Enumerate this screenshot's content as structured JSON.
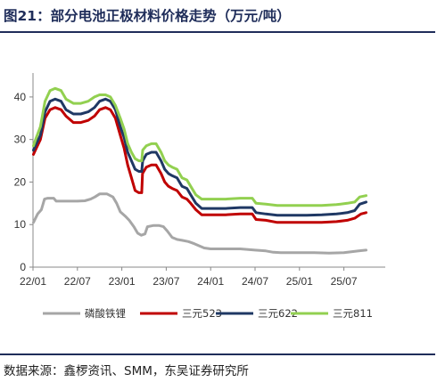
{
  "title": "图21：部分电池正极材料价格走势（万元/吨）",
  "source": "数据来源：鑫椤资讯、SMM，东吴证券研究所",
  "colors": {
    "lfp": "#a6a6a6",
    "ncm523": "#c00000",
    "ncm622": "#1f3864",
    "ncm811": "#92d050",
    "rule": "#1f2d5a"
  },
  "chart_data": {
    "type": "line",
    "x_start": "2022-01",
    "x_end": "2025-10",
    "xticks": [
      "22/01",
      "22/07",
      "23/01",
      "23/07",
      "24/01",
      "24/07",
      "25/01",
      "25/07"
    ],
    "yticks": [
      "0",
      "10",
      "20",
      "30",
      "40"
    ],
    "ylim": [
      0,
      45
    ],
    "grid": false,
    "legend_position": "bottom",
    "series": [
      {
        "name": "磷酸铁锂",
        "color_key": "lfp",
        "points": [
          [
            "2022-01-03",
            10.5
          ],
          [
            "2022-01-20",
            12.5
          ],
          [
            "2022-02-05",
            13.5
          ],
          [
            "2022-02-18",
            16
          ],
          [
            "2022-03-01",
            16.2
          ],
          [
            "2022-03-25",
            16.2
          ],
          [
            "2022-04-05",
            15.5
          ],
          [
            "2022-05-01",
            15.5
          ],
          [
            "2022-06-01",
            15.5
          ],
          [
            "2022-07-01",
            15.5
          ],
          [
            "2022-08-01",
            15.6
          ],
          [
            "2022-08-25",
            16
          ],
          [
            "2022-09-12",
            16.5
          ],
          [
            "2022-10-01",
            17.2
          ],
          [
            "2022-11-01",
            17.2
          ],
          [
            "2022-11-25",
            16.5
          ],
          [
            "2022-12-10",
            15
          ],
          [
            "2022-12-25",
            13
          ],
          [
            "2023-01-15",
            12
          ],
          [
            "2023-02-01",
            11
          ],
          [
            "2023-02-20",
            9.5
          ],
          [
            "2023-03-05",
            8
          ],
          [
            "2023-03-20",
            7.5
          ],
          [
            "2023-04-05",
            7.8
          ],
          [
            "2023-04-15",
            9.5
          ],
          [
            "2023-05-10",
            9.8
          ],
          [
            "2023-06-01",
            9.8
          ],
          [
            "2023-06-20",
            9.5
          ],
          [
            "2023-07-05",
            8.5
          ],
          [
            "2023-07-25",
            7
          ],
          [
            "2023-08-15",
            6.5
          ],
          [
            "2023-09-05",
            6.3
          ],
          [
            "2023-10-01",
            6
          ],
          [
            "2023-10-25",
            5.5
          ],
          [
            "2023-11-15",
            5
          ],
          [
            "2023-12-05",
            4.5
          ],
          [
            "2024-01-01",
            4.3
          ],
          [
            "2024-03-01",
            4.3
          ],
          [
            "2024-05-01",
            4.3
          ],
          [
            "2024-07-01",
            4.0
          ],
          [
            "2024-08-15",
            3.8
          ],
          [
            "2024-09-15",
            3.5
          ],
          [
            "2024-10-15",
            3.4
          ],
          [
            "2025-01-01",
            3.4
          ],
          [
            "2025-03-01",
            3.4
          ],
          [
            "2025-05-01",
            3.3
          ],
          [
            "2025-07-01",
            3.4
          ],
          [
            "2025-08-01",
            3.6
          ],
          [
            "2025-09-01",
            3.8
          ],
          [
            "2025-10-01",
            4.0
          ]
        ]
      },
      {
        "name": "三元523",
        "color_key": "ncm523",
        "points": [
          [
            "2022-01-03",
            26.5
          ],
          [
            "2022-01-15",
            28
          ],
          [
            "2022-02-01",
            30
          ],
          [
            "2022-02-20",
            35
          ],
          [
            "2022-03-10",
            37
          ],
          [
            "2022-04-01",
            37.5
          ],
          [
            "2022-04-25",
            37
          ],
          [
            "2022-05-15",
            35.5
          ],
          [
            "2022-06-15",
            34
          ],
          [
            "2022-07-15",
            34
          ],
          [
            "2022-08-15",
            34.5
          ],
          [
            "2022-09-10",
            35.5
          ],
          [
            "2022-10-01",
            37
          ],
          [
            "2022-10-25",
            37.5
          ],
          [
            "2022-11-15",
            37
          ],
          [
            "2022-12-05",
            35
          ],
          [
            "2022-12-25",
            31
          ],
          [
            "2023-01-10",
            28
          ],
          [
            "2023-01-25",
            24
          ],
          [
            "2023-02-10",
            21
          ],
          [
            "2023-02-25",
            18
          ],
          [
            "2023-03-10",
            17.5
          ],
          [
            "2023-03-22",
            17.5
          ],
          [
            "2023-03-25",
            22
          ],
          [
            "2023-04-10",
            23.5
          ],
          [
            "2023-05-01",
            24
          ],
          [
            "2023-05-20",
            24
          ],
          [
            "2023-06-10",
            22
          ],
          [
            "2023-06-25",
            20
          ],
          [
            "2023-07-10",
            19
          ],
          [
            "2023-07-25",
            18.5
          ],
          [
            "2023-08-15",
            18
          ],
          [
            "2023-09-05",
            16.5
          ],
          [
            "2023-09-25",
            16
          ],
          [
            "2023-10-10",
            15
          ],
          [
            "2023-11-01",
            13.5
          ],
          [
            "2023-11-25",
            12.3
          ],
          [
            "2024-01-01",
            12.3
          ],
          [
            "2024-03-01",
            12.3
          ],
          [
            "2024-05-01",
            12.5
          ],
          [
            "2024-06-20",
            12.5
          ],
          [
            "2024-07-05",
            11.2
          ],
          [
            "2024-08-15",
            11
          ],
          [
            "2024-10-01",
            10.5
          ],
          [
            "2024-12-01",
            10.5
          ],
          [
            "2025-02-01",
            10.5
          ],
          [
            "2025-04-01",
            10.5
          ],
          [
            "2025-06-01",
            10.7
          ],
          [
            "2025-07-15",
            11
          ],
          [
            "2025-08-15",
            11.5
          ],
          [
            "2025-09-10",
            12.5
          ],
          [
            "2025-10-01",
            12.8
          ]
        ]
      },
      {
        "name": "三元622",
        "color_key": "ncm622",
        "points": [
          [
            "2022-01-03",
            27.5
          ],
          [
            "2022-01-15",
            29
          ],
          [
            "2022-02-01",
            31
          ],
          [
            "2022-02-20",
            36.5
          ],
          [
            "2022-03-10",
            39
          ],
          [
            "2022-04-01",
            39.5
          ],
          [
            "2022-04-25",
            39
          ],
          [
            "2022-05-15",
            37
          ],
          [
            "2022-06-15",
            36
          ],
          [
            "2022-07-15",
            36
          ],
          [
            "2022-08-15",
            36.5
          ],
          [
            "2022-09-10",
            37.5
          ],
          [
            "2022-10-01",
            39
          ],
          [
            "2022-10-25",
            39.5
          ],
          [
            "2022-11-15",
            39
          ],
          [
            "2022-12-05",
            37
          ],
          [
            "2022-12-25",
            33
          ],
          [
            "2023-01-10",
            30.5
          ],
          [
            "2023-01-25",
            27
          ],
          [
            "2023-02-10",
            25
          ],
          [
            "2023-02-25",
            23
          ],
          [
            "2023-03-10",
            22.5
          ],
          [
            "2023-03-22",
            22.5
          ],
          [
            "2023-03-26",
            25
          ],
          [
            "2023-04-10",
            26.5
          ],
          [
            "2023-05-01",
            27
          ],
          [
            "2023-05-20",
            27
          ],
          [
            "2023-06-10",
            25
          ],
          [
            "2023-06-25",
            23
          ],
          [
            "2023-07-10",
            22
          ],
          [
            "2023-07-25",
            21.5
          ],
          [
            "2023-08-15",
            21
          ],
          [
            "2023-09-05",
            19
          ],
          [
            "2023-09-25",
            18.5
          ],
          [
            "2023-10-10",
            17
          ],
          [
            "2023-11-01",
            15
          ],
          [
            "2023-11-25",
            13.8
          ],
          [
            "2024-01-01",
            13.8
          ],
          [
            "2024-03-01",
            13.8
          ],
          [
            "2024-05-01",
            14
          ],
          [
            "2024-06-20",
            14
          ],
          [
            "2024-07-05",
            12.8
          ],
          [
            "2024-08-15",
            12.5
          ],
          [
            "2024-10-01",
            12.2
          ],
          [
            "2024-12-01",
            12.2
          ],
          [
            "2025-02-01",
            12.2
          ],
          [
            "2025-04-01",
            12.3
          ],
          [
            "2025-06-01",
            12.5
          ],
          [
            "2025-07-15",
            12.8
          ],
          [
            "2025-08-15",
            13.3
          ],
          [
            "2025-09-05",
            14.8
          ],
          [
            "2025-10-01",
            15.3
          ]
        ]
      },
      {
        "name": "三元811",
        "color_key": "ncm811",
        "points": [
          [
            "2022-01-03",
            28.5
          ],
          [
            "2022-01-15",
            30.5
          ],
          [
            "2022-02-01",
            33
          ],
          [
            "2022-02-20",
            39
          ],
          [
            "2022-03-10",
            41.5
          ],
          [
            "2022-04-01",
            42
          ],
          [
            "2022-04-25",
            41.5
          ],
          [
            "2022-05-15",
            39.5
          ],
          [
            "2022-06-15",
            38.5
          ],
          [
            "2022-07-15",
            38.5
          ],
          [
            "2022-08-15",
            39
          ],
          [
            "2022-09-10",
            40
          ],
          [
            "2022-10-01",
            40.5
          ],
          [
            "2022-10-25",
            40.5
          ],
          [
            "2022-11-15",
            40
          ],
          [
            "2022-12-05",
            38
          ],
          [
            "2022-12-25",
            35
          ],
          [
            "2023-01-10",
            32.5
          ],
          [
            "2023-01-25",
            29
          ],
          [
            "2023-02-10",
            27
          ],
          [
            "2023-02-25",
            25.5
          ],
          [
            "2023-03-10",
            25
          ],
          [
            "2023-03-22",
            25
          ],
          [
            "2023-03-26",
            27.5
          ],
          [
            "2023-04-10",
            28.5
          ],
          [
            "2023-05-01",
            29
          ],
          [
            "2023-05-20",
            29
          ],
          [
            "2023-06-10",
            27
          ],
          [
            "2023-06-25",
            25
          ],
          [
            "2023-07-10",
            24
          ],
          [
            "2023-07-25",
            23.5
          ],
          [
            "2023-08-15",
            23
          ],
          [
            "2023-09-05",
            21
          ],
          [
            "2023-09-25",
            20.5
          ],
          [
            "2023-10-10",
            19
          ],
          [
            "2023-11-01",
            17
          ],
          [
            "2023-11-25",
            16
          ],
          [
            "2024-01-01",
            16
          ],
          [
            "2024-03-01",
            16
          ],
          [
            "2024-05-01",
            16.2
          ],
          [
            "2024-06-20",
            16.2
          ],
          [
            "2024-07-05",
            15
          ],
          [
            "2024-08-15",
            14.8
          ],
          [
            "2024-10-01",
            14.5
          ],
          [
            "2024-12-01",
            14.5
          ],
          [
            "2025-02-01",
            14.5
          ],
          [
            "2025-04-01",
            14.5
          ],
          [
            "2025-06-01",
            14.7
          ],
          [
            "2025-07-15",
            15
          ],
          [
            "2025-08-15",
            15.3
          ],
          [
            "2025-09-05",
            16.5
          ],
          [
            "2025-10-01",
            16.8
          ]
        ]
      }
    ]
  }
}
